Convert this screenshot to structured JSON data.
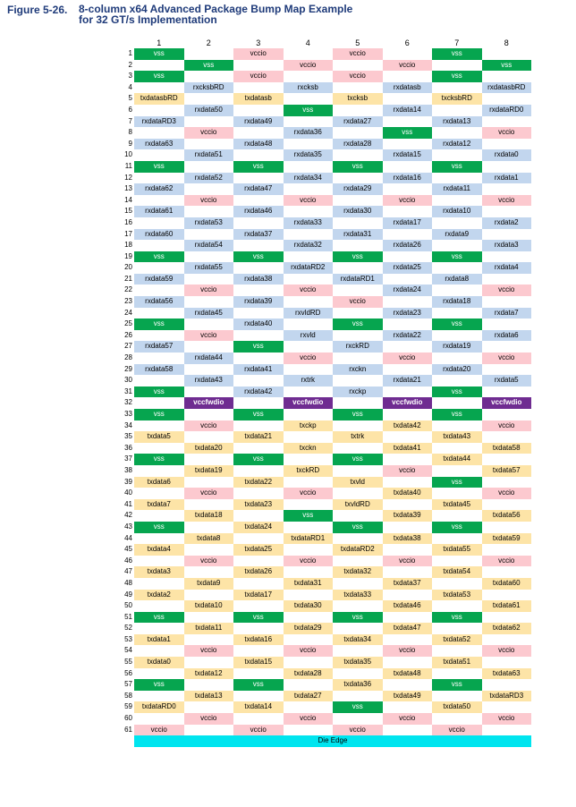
{
  "figure": {
    "number": "Figure 5-26.",
    "title_line1": "8-column x64 Advanced Package Bump Map Example",
    "title_line2": "for 32 GT/s Implementation"
  },
  "columns": [
    "1",
    "2",
    "3",
    "4",
    "5",
    "6",
    "7",
    "8"
  ],
  "rows": [
    [
      "1",
      "vss",
      "",
      "vccio",
      "",
      "vccio",
      "",
      "vss",
      ""
    ],
    [
      "2",
      "",
      "vss",
      "",
      "vccio",
      "",
      "vccio",
      "",
      "vss"
    ],
    [
      "3",
      "vss",
      "",
      "vccio",
      "",
      "vccio",
      "",
      "vss",
      ""
    ],
    [
      "4",
      "",
      "rxcksbRD",
      "",
      "rxcksb",
      "",
      "rxdatasb",
      "",
      "rxdatasbRD"
    ],
    [
      "5",
      "txdatasbRD",
      "",
      "txdatasb",
      "",
      "txcksb",
      "",
      "txcksbRD",
      ""
    ],
    [
      "6",
      "",
      "rxdata50",
      "",
      "vss",
      "",
      "rxdata14",
      "",
      "rxdataRD0"
    ],
    [
      "7",
      "rxdataRD3",
      "",
      "rxdata49",
      "",
      "rxdata27",
      "",
      "rxdata13",
      ""
    ],
    [
      "8",
      "",
      "vccio",
      "",
      "rxdata36",
      "",
      "vss",
      "",
      "vccio"
    ],
    [
      "9",
      "rxdata63",
      "",
      "rxdata48",
      "",
      "rxdata28",
      "",
      "rxdata12",
      ""
    ],
    [
      "10",
      "",
      "rxdata51",
      "",
      "rxdata35",
      "",
      "rxdata15",
      "",
      "rxdata0"
    ],
    [
      "11",
      "vss",
      "",
      "vss",
      "",
      "vss",
      "",
      "vss",
      ""
    ],
    [
      "12",
      "",
      "rxdata52",
      "",
      "rxdata34",
      "",
      "rxdata16",
      "",
      "rxdata1"
    ],
    [
      "13",
      "rxdata62",
      "",
      "rxdata47",
      "",
      "rxdata29",
      "",
      "rxdata11",
      ""
    ],
    [
      "14",
      "",
      "vccio",
      "",
      "vccio",
      "",
      "vccio",
      "",
      "vccio"
    ],
    [
      "15",
      "rxdata61",
      "",
      "rxdata46",
      "",
      "rxdata30",
      "",
      "rxdata10",
      ""
    ],
    [
      "16",
      "",
      "rxdata53",
      "",
      "rxdata33",
      "",
      "rxdata17",
      "",
      "rxdata2"
    ],
    [
      "17",
      "rxdata60",
      "",
      "rxdata37",
      "",
      "rxdata31",
      "",
      "rxdata9",
      ""
    ],
    [
      "18",
      "",
      "rxdata54",
      "",
      "rxdata32",
      "",
      "rxdata26",
      "",
      "rxdata3"
    ],
    [
      "19",
      "vss",
      "",
      "vss",
      "",
      "vss",
      "",
      "vss",
      ""
    ],
    [
      "20",
      "",
      "rxdata55",
      "",
      "rxdataRD2",
      "",
      "rxdata25",
      "",
      "rxdata4"
    ],
    [
      "21",
      "rxdata59",
      "",
      "rxdata38",
      "",
      "rxdataRD1",
      "",
      "rxdata8",
      ""
    ],
    [
      "22",
      "",
      "vccio",
      "",
      "vccio",
      "",
      "rxdata24",
      "",
      "vccio"
    ],
    [
      "23",
      "rxdata56",
      "",
      "rxdata39",
      "",
      "vccio",
      "",
      "rxdata18",
      ""
    ],
    [
      "24",
      "",
      "rxdata45",
      "",
      "rxvldRD",
      "",
      "rxdata23",
      "",
      "rxdata7"
    ],
    [
      "25",
      "vss",
      "",
      "rxdata40",
      "",
      "vss",
      "",
      "vss",
      ""
    ],
    [
      "26",
      "",
      "vccio",
      "",
      "rxvld",
      "",
      "rxdata22",
      "",
      "rxdata6"
    ],
    [
      "27",
      "rxdata57",
      "",
      "vss",
      "",
      "rxckRD",
      "",
      "rxdata19",
      ""
    ],
    [
      "28",
      "",
      "rxdata44",
      "",
      "vccio",
      "",
      "vccio",
      "",
      "vccio"
    ],
    [
      "29",
      "rxdata58",
      "",
      "rxdata41",
      "",
      "rxckn",
      "",
      "rxdata20",
      ""
    ],
    [
      "30",
      "",
      "rxdata43",
      "",
      "rxtrk",
      "",
      "rxdata21",
      "",
      "rxdata5"
    ],
    [
      "31",
      "vss",
      "",
      "rxdata42",
      "",
      "rxckp",
      "",
      "vss",
      ""
    ],
    [
      "32",
      "",
      "vccfwdio",
      "",
      "vccfwdio",
      "",
      "vccfwdio",
      "",
      "vccfwdio"
    ],
    [
      "33",
      "vss",
      "",
      "vss",
      "",
      "vss",
      "",
      "vss",
      ""
    ],
    [
      "34",
      "",
      "vccio",
      "",
      "txckp",
      "",
      "txdata42",
      "",
      "vccio"
    ],
    [
      "35",
      "txdata5",
      "",
      "txdata21",
      "",
      "txtrk",
      "",
      "txdata43",
      ""
    ],
    [
      "36",
      "",
      "txdata20",
      "",
      "txckn",
      "",
      "txdata41",
      "",
      "txdata58"
    ],
    [
      "37",
      "vss",
      "",
      "vss",
      "",
      "vss",
      "",
      "txdata44",
      ""
    ],
    [
      "38",
      "",
      "txdata19",
      "",
      "txckRD",
      "",
      "vccio",
      "",
      "txdata57"
    ],
    [
      "39",
      "txdata6",
      "",
      "txdata22",
      "",
      "txvld",
      "",
      "vss",
      ""
    ],
    [
      "40",
      "",
      "vccio",
      "",
      "vccio",
      "",
      "txdata40",
      "",
      "vccio"
    ],
    [
      "41",
      "txdata7",
      "",
      "txdata23",
      "",
      "txvldRD",
      "",
      "txdata45",
      ""
    ],
    [
      "42",
      "",
      "txdata18",
      "",
      "vss",
      "",
      "txdata39",
      "",
      "txdata56"
    ],
    [
      "43",
      "vss",
      "",
      "txdata24",
      "",
      "vss",
      "",
      "vss",
      ""
    ],
    [
      "44",
      "",
      "txdata8",
      "",
      "txdataRD1",
      "",
      "txdata38",
      "",
      "txdata59"
    ],
    [
      "45",
      "txdata4",
      "",
      "txdata25",
      "",
      "txdataRD2",
      "",
      "txdata55",
      ""
    ],
    [
      "46",
      "",
      "vccio",
      "",
      "vccio",
      "",
      "vccio",
      "",
      "vccio"
    ],
    [
      "47",
      "txdata3",
      "",
      "txdata26",
      "",
      "txdata32",
      "",
      "txdata54",
      ""
    ],
    [
      "48",
      "",
      "txdata9",
      "",
      "txdata31",
      "",
      "txdata37",
      "",
      "txdata60"
    ],
    [
      "49",
      "txdata2",
      "",
      "txdata17",
      "",
      "txdata33",
      "",
      "txdata53",
      ""
    ],
    [
      "50",
      "",
      "txdata10",
      "",
      "txdata30",
      "",
      "txdata46",
      "",
      "txdata61"
    ],
    [
      "51",
      "vss",
      "",
      "vss",
      "",
      "vss",
      "",
      "vss",
      ""
    ],
    [
      "52",
      "",
      "txdata11",
      "",
      "txdata29",
      "",
      "txdata47",
      "",
      "txdata62"
    ],
    [
      "53",
      "txdata1",
      "",
      "txdata16",
      "",
      "txdata34",
      "",
      "txdata52",
      ""
    ],
    [
      "54",
      "",
      "vccio",
      "",
      "vccio",
      "",
      "vccio",
      "",
      "vccio"
    ],
    [
      "55",
      "txdata0",
      "",
      "txdata15",
      "",
      "txdata35",
      "",
      "txdata51",
      ""
    ],
    [
      "56",
      "",
      "txdata12",
      "",
      "txdata28",
      "",
      "txdata48",
      "",
      "txdata63"
    ],
    [
      "57",
      "vss",
      "",
      "vss",
      "",
      "txdata36",
      "",
      "vss",
      ""
    ],
    [
      "58",
      "",
      "txdata13",
      "",
      "txdata27",
      "",
      "txdata49",
      "",
      "txdataRD3"
    ],
    [
      "59",
      "txdataRD0",
      "",
      "txdata14",
      "",
      "vss",
      "",
      "txdata50",
      ""
    ],
    [
      "60",
      "",
      "vccio",
      "",
      "vccio",
      "",
      "vccio",
      "",
      "vccio"
    ],
    [
      "61",
      "vccio",
      "",
      "vccio",
      "",
      "vccio",
      "",
      "vccio",
      ""
    ]
  ],
  "footer_label": "Die Edge",
  "colors": {
    "vss": "#06a54f",
    "vccio": "#fcc9cf",
    "rx": "#c2d6ee",
    "tx": "#fde4a7",
    "vccfwdio": "#6f2c91",
    "die_edge": "#00e5ef",
    "title": "#1f3b7a"
  }
}
